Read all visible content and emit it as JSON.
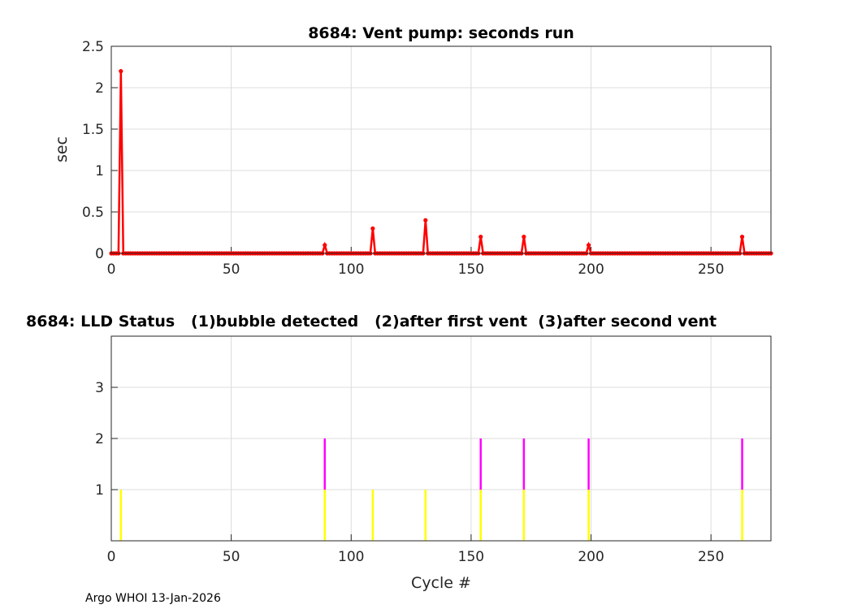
{
  "chart_data": [
    {
      "type": "line",
      "title": "8684: Vent pump: seconds run",
      "xlabel": "",
      "ylabel": "sec",
      "xlim": [
        0,
        275
      ],
      "ylim": [
        0,
        2.5
      ],
      "xticks": [
        0,
        50,
        100,
        150,
        200,
        250
      ],
      "yticks": [
        0,
        0.5,
        1,
        1.5,
        2,
        2.5
      ],
      "ytick_labels": [
        "0",
        "0.5",
        "1",
        "1.5",
        "2",
        "2.5"
      ],
      "grid": true,
      "color": "#ff0000",
      "x_range": [
        0,
        275
      ],
      "baseline_value": 0,
      "nonzero_points": [
        {
          "x": 4,
          "y": 2.2
        },
        {
          "x": 89,
          "y": 0.1
        },
        {
          "x": 109,
          "y": 0.3
        },
        {
          "x": 131,
          "y": 0.4
        },
        {
          "x": 154,
          "y": 0.2
        },
        {
          "x": 172,
          "y": 0.2
        },
        {
          "x": 199,
          "y": 0.1
        },
        {
          "x": 263,
          "y": 0.2
        }
      ]
    },
    {
      "type": "bar",
      "title": "8684: LLD Status   (1)bubble detected   (2)after first vent  (3)after second vent",
      "xlabel": "Cycle #",
      "ylabel": "",
      "xlim": [
        0,
        275
      ],
      "ylim": [
        0,
        4
      ],
      "xticks": [
        0,
        50,
        100,
        150,
        200,
        250
      ],
      "yticks": [
        1,
        2,
        3
      ],
      "grid": true,
      "level_colors": {
        "1": "#ffff00",
        "2": "#ff00ff",
        "3": "#00ffff"
      },
      "points": [
        {
          "x": 4,
          "status": 1
        },
        {
          "x": 89,
          "status": 2
        },
        {
          "x": 109,
          "status": 1
        },
        {
          "x": 131,
          "status": 1
        },
        {
          "x": 154,
          "status": 2
        },
        {
          "x": 172,
          "status": 2
        },
        {
          "x": 199,
          "status": 2
        },
        {
          "x": 263,
          "status": 2
        }
      ]
    }
  ],
  "footer": "Argo WHOI 13-Jan-2026"
}
